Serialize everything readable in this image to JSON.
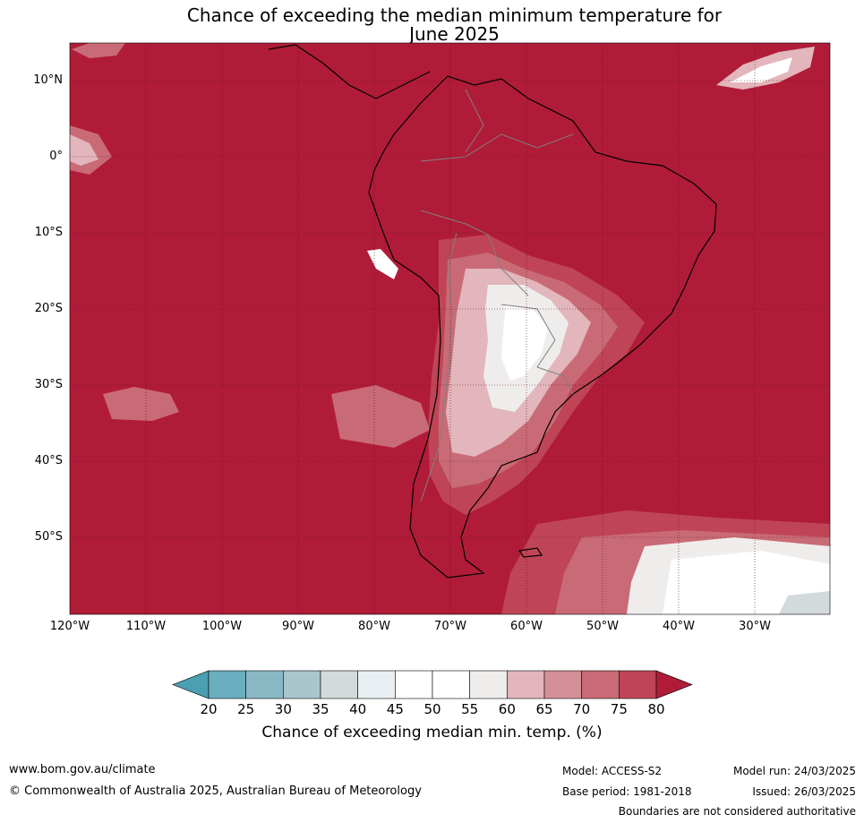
{
  "title": {
    "line1": "Chance of exceeding the median minimum temperature for",
    "line2": "June 2025"
  },
  "map": {
    "latitude_labels": [
      "10°N",
      "0°",
      "10°S",
      "20°S",
      "30°S",
      "40°S",
      "50°S"
    ],
    "longitude_labels": [
      "120°W",
      "110°W",
      "100°W",
      "90°W",
      "80°W",
      "70°W",
      "60°W",
      "50°W",
      "40°W",
      "30°W"
    ],
    "lat_range": [
      -60,
      15
    ],
    "lon_range": [
      -120,
      -20
    ],
    "dominant_category": "80+",
    "colors": {
      "ocean_high": "#b01c38",
      "grid": "#5a0a18",
      "coast": "#000000",
      "border": "#808080"
    }
  },
  "colorbar": {
    "ticks": [
      "20",
      "25",
      "30",
      "35",
      "40",
      "45",
      "50",
      "55",
      "60",
      "65",
      "70",
      "75",
      "80"
    ],
    "colors": [
      "#4a9fb0",
      "#6aaebf",
      "#8ab9c5",
      "#a9c6cc",
      "#d3dadc",
      "#e9eff2",
      "#ffffff",
      "#ffffff",
      "#efedec",
      "#e2b6bc",
      "#d49097",
      "#c96b76",
      "#bf4556",
      "#b01c38"
    ],
    "label": "Chance of exceeding median min. temp. (%)"
  },
  "footer": {
    "website": "www.bom.gov.au/climate",
    "copyright": "© Commonwealth of Australia 2025, Australian Bureau of Meteorology",
    "model": "Model: ACCESS-S2",
    "base_period": "Base period: 1981-2018",
    "model_run": "Model run: 24/03/2025",
    "issued": "Issued: 26/03/2025",
    "disclaimer": "Boundaries are not considered authoritative"
  }
}
